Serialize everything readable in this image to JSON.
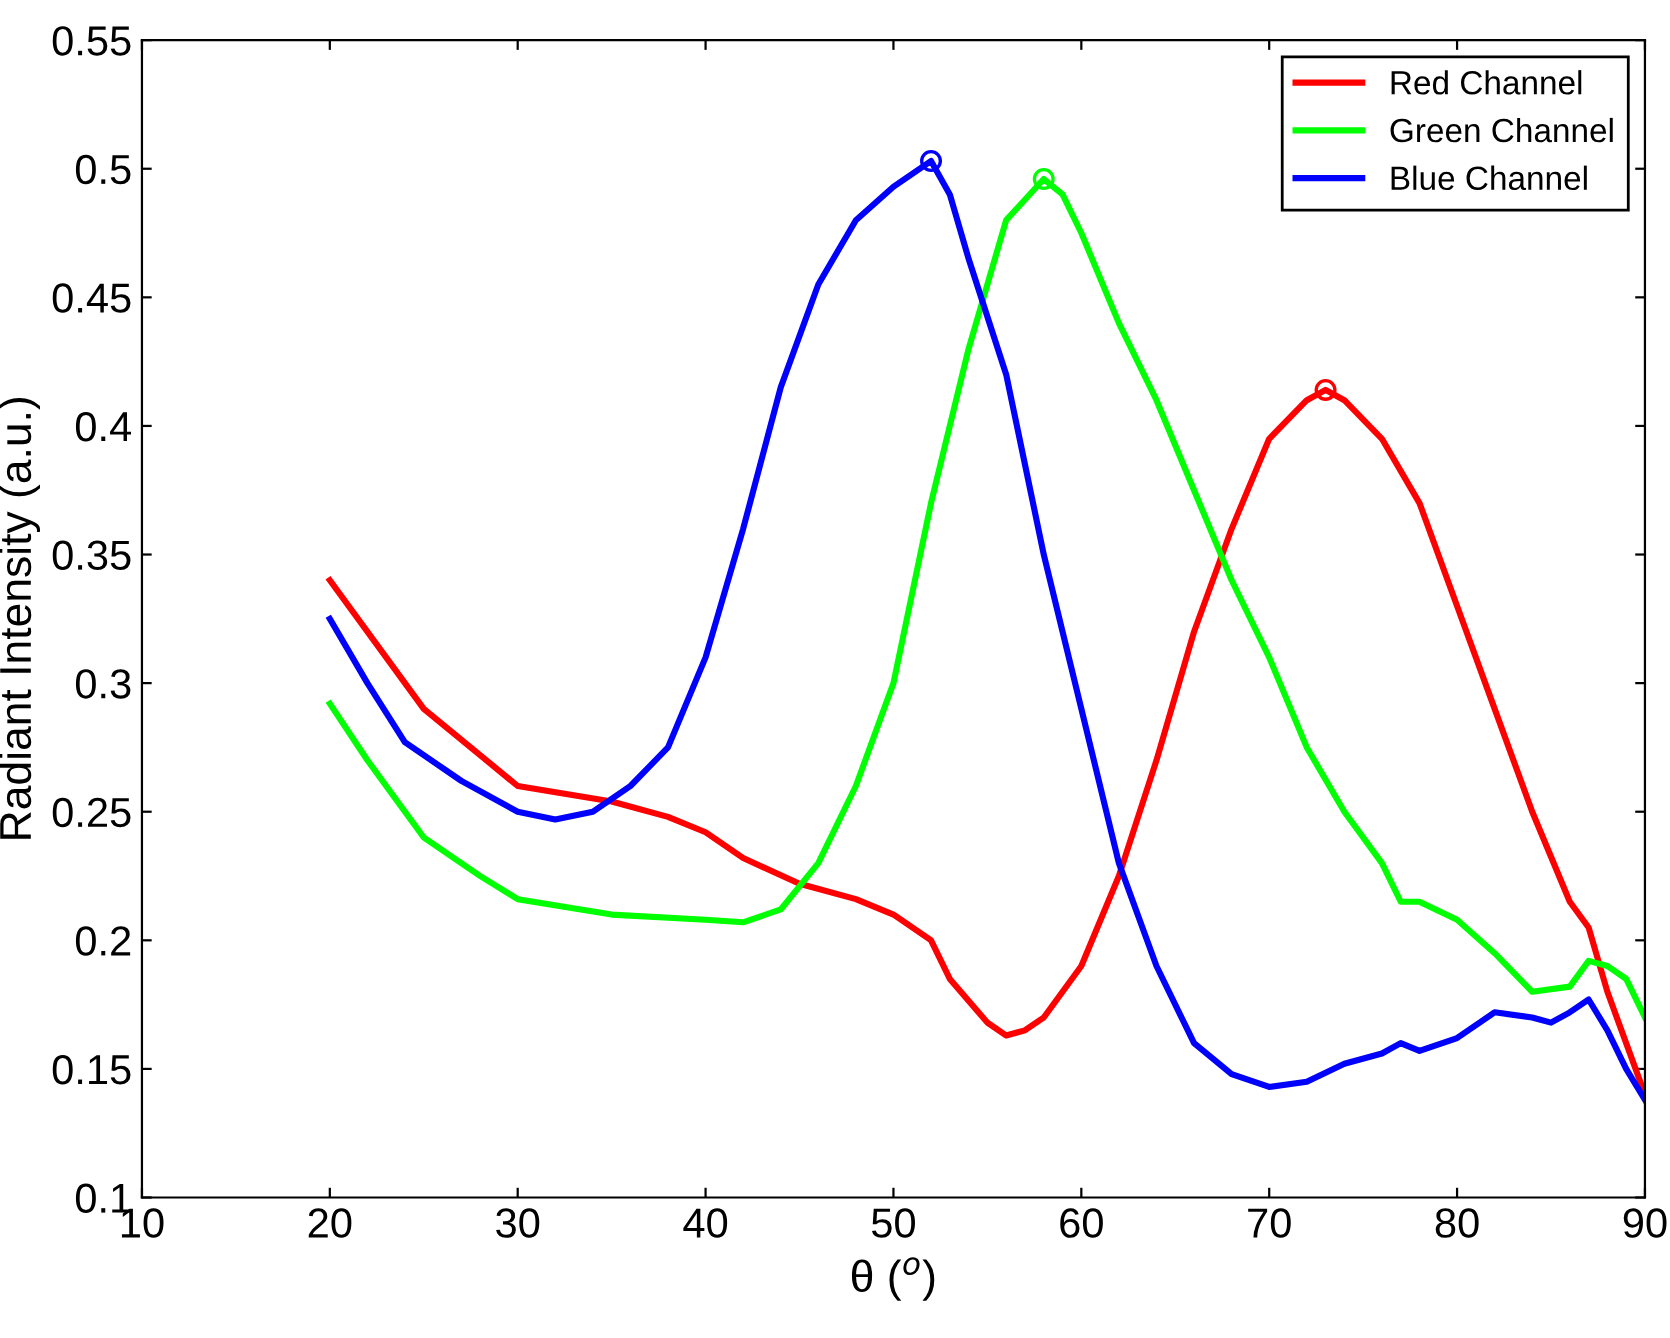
{
  "chart_data": {
    "type": "line",
    "xlabel": "θ ($^{o}$)",
    "ylabel": "Radiant Intensity (a.u.)",
    "xlim": [
      10,
      90
    ],
    "xticks": [
      10,
      20,
      30,
      40,
      50,
      60,
      70,
      80,
      90
    ],
    "ylim": [
      0.1,
      0.55
    ],
    "yticks": [
      0.1,
      0.15,
      0.2,
      0.25,
      0.3,
      0.35,
      0.4,
      0.45,
      0.5,
      0.55
    ],
    "grid": false,
    "legend": "top right",
    "line_style": "solid",
    "series": [
      {
        "name": "Red Channel",
        "color": "#ff0000",
        "x": [
          20,
          25,
          30,
          35,
          38,
          40,
          42,
          45,
          48,
          50,
          52,
          53,
          55,
          56,
          57,
          58,
          60,
          62,
          64,
          66,
          68,
          70,
          72,
          73,
          74,
          76,
          78,
          80,
          82,
          84,
          86,
          87,
          88,
          90
        ],
        "values": [
          0.34,
          0.29,
          0.26,
          0.254,
          0.248,
          0.242,
          0.232,
          0.222,
          0.216,
          0.21,
          0.2,
          0.185,
          0.168,
          0.163,
          0.165,
          0.17,
          0.19,
          0.225,
          0.27,
          0.32,
          0.36,
          0.395,
          0.41,
          0.414,
          0.41,
          0.395,
          0.37,
          0.33,
          0.29,
          0.25,
          0.215,
          0.205,
          0.18,
          0.14
        ]
      },
      {
        "name": "Green Channel",
        "color": "#00ff00",
        "x": [
          20,
          22,
          25,
          28,
          30,
          35,
          40,
          42,
          44,
          46,
          48,
          50,
          52,
          54,
          56,
          58,
          59,
          60,
          62,
          64,
          66,
          68,
          70,
          72,
          74,
          76,
          77,
          78,
          80,
          82,
          84,
          86,
          87,
          88,
          89,
          90
        ],
        "values": [
          0.292,
          0.27,
          0.24,
          0.225,
          0.216,
          0.21,
          0.208,
          0.207,
          0.212,
          0.23,
          0.26,
          0.3,
          0.37,
          0.43,
          0.48,
          0.496,
          0.49,
          0.475,
          0.44,
          0.41,
          0.375,
          0.34,
          0.31,
          0.275,
          0.25,
          0.23,
          0.215,
          0.215,
          0.208,
          0.195,
          0.18,
          0.182,
          0.192,
          0.19,
          0.185,
          0.17
        ]
      },
      {
        "name": "Blue Channel",
        "color": "#0000ff",
        "x": [
          20,
          22,
          24,
          27,
          30,
          32,
          34,
          36,
          38,
          40,
          42,
          44,
          46,
          48,
          50,
          52,
          53,
          54,
          56,
          58,
          60,
          62,
          64,
          66,
          68,
          70,
          72,
          74,
          76,
          77,
          78,
          80,
          82,
          84,
          85,
          86,
          87,
          88,
          89,
          90
        ],
        "values": [
          0.325,
          0.3,
          0.277,
          0.262,
          0.25,
          0.247,
          0.25,
          0.26,
          0.275,
          0.31,
          0.36,
          0.415,
          0.455,
          0.48,
          0.493,
          0.503,
          0.49,
          0.465,
          0.42,
          0.35,
          0.29,
          0.23,
          0.19,
          0.16,
          0.148,
          0.143,
          0.145,
          0.152,
          0.156,
          0.16,
          0.157,
          0.162,
          0.172,
          0.17,
          0.168,
          0.172,
          0.177,
          0.165,
          0.15,
          0.138
        ]
      },
      {
        "type": "scatter",
        "marker": "circle",
        "color": "#ff0000",
        "x": [
          73
        ],
        "values": [
          0.414
        ]
      },
      {
        "type": "scatter",
        "marker": "circle",
        "color": "#00ff00",
        "x": [
          58
        ],
        "values": [
          0.496
        ]
      },
      {
        "type": "scatter",
        "marker": "circle",
        "color": "#0000ff",
        "x": [
          52
        ],
        "values": [
          0.503
        ]
      }
    ]
  }
}
